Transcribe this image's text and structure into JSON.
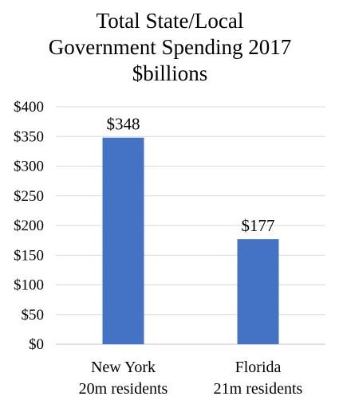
{
  "chart_data": {
    "type": "bar",
    "title_lines": [
      "Total State/Local",
      "Government Spending 2017",
      "$billions"
    ],
    "categories": [
      [
        "New York",
        "20m residents"
      ],
      [
        "Florida",
        "21m residents"
      ]
    ],
    "values": [
      348,
      177
    ],
    "data_labels": [
      "$348",
      "$177"
    ],
    "ylim": [
      0,
      400
    ],
    "yticks": [
      {
        "value": 0,
        "label": "$0"
      },
      {
        "value": 50,
        "label": "$50"
      },
      {
        "value": 100,
        "label": "$100"
      },
      {
        "value": 150,
        "label": "$150"
      },
      {
        "value": 200,
        "label": "$200"
      },
      {
        "value": 250,
        "label": "$250"
      },
      {
        "value": 300,
        "label": "$300"
      },
      {
        "value": 350,
        "label": "$350"
      },
      {
        "value": 400,
        "label": "$400"
      }
    ],
    "bar_color": "#4472c4",
    "grid": true,
    "legend": "none"
  }
}
